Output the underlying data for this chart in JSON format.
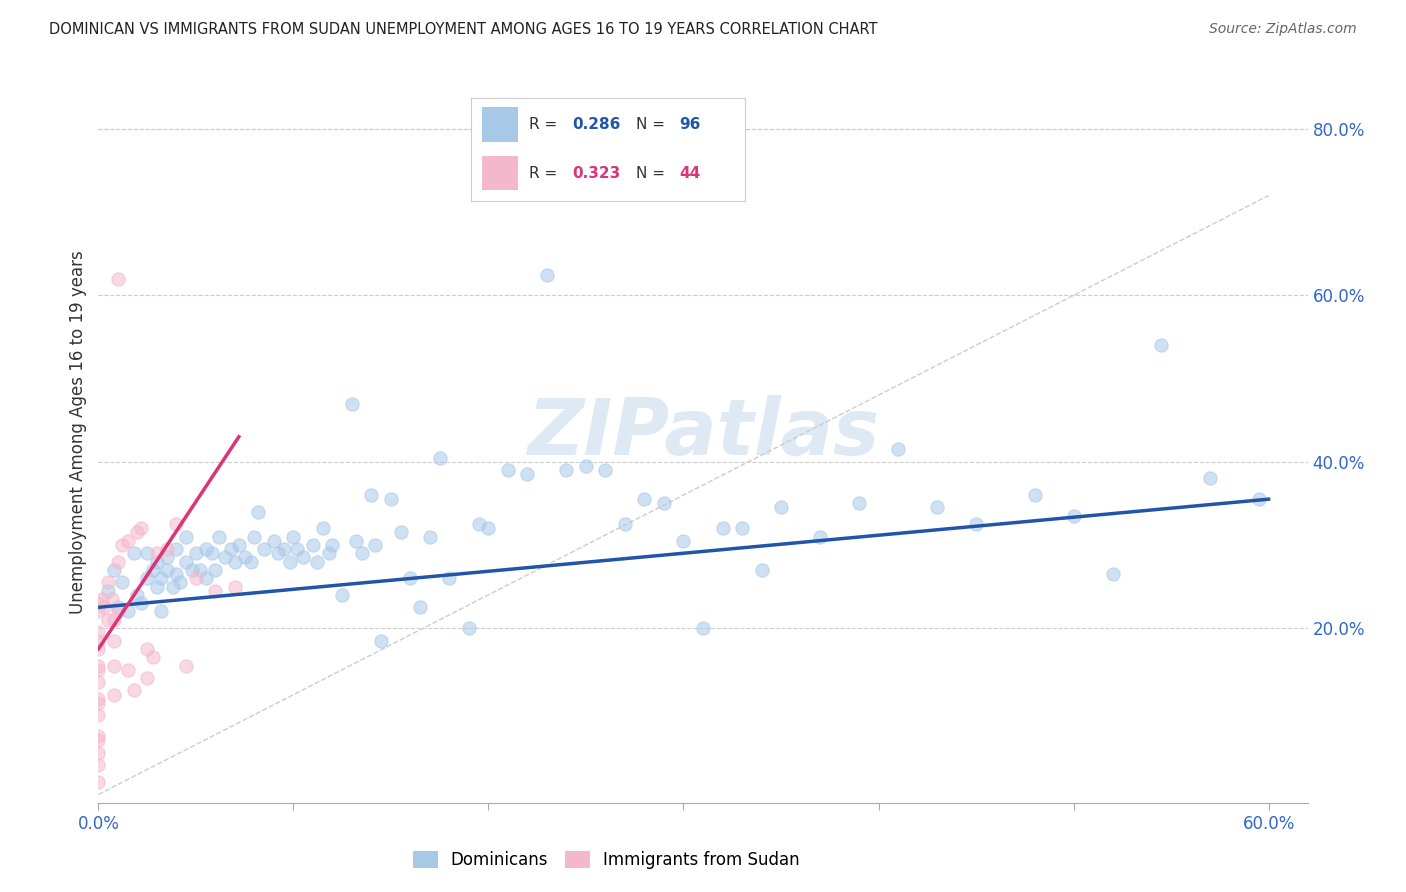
{
  "title": "DOMINICAN VS IMMIGRANTS FROM SUDAN UNEMPLOYMENT AMONG AGES 16 TO 19 YEARS CORRELATION CHART",
  "source": "Source: ZipAtlas.com",
  "ylabel": "Unemployment Among Ages 16 to 19 years",
  "xlim": [
    0.0,
    0.62
  ],
  "ylim": [
    -0.01,
    0.88
  ],
  "xticks": [
    0.0,
    0.1,
    0.2,
    0.3,
    0.4,
    0.5,
    0.6
  ],
  "xticklabels": [
    "0.0%",
    "",
    "",
    "",
    "",
    "",
    "60.0%"
  ],
  "yticks_right": [
    0.2,
    0.4,
    0.6,
    0.8
  ],
  "ytick_right_labels": [
    "20.0%",
    "40.0%",
    "60.0%",
    "80.0%"
  ],
  "blue_color": "#a8c8e8",
  "pink_color": "#f4b8cc",
  "blue_line_color": "#2255aa",
  "pink_line_color": "#dd3377",
  "watermark": "ZIPatlas",
  "blue_scatter_x": [
    0.005,
    0.008,
    0.01,
    0.012,
    0.015,
    0.018,
    0.02,
    0.022,
    0.025,
    0.025,
    0.028,
    0.03,
    0.03,
    0.032,
    0.032,
    0.035,
    0.035,
    0.038,
    0.04,
    0.04,
    0.042,
    0.045,
    0.045,
    0.048,
    0.05,
    0.052,
    0.055,
    0.055,
    0.058,
    0.06,
    0.062,
    0.065,
    0.068,
    0.07,
    0.072,
    0.075,
    0.078,
    0.08,
    0.082,
    0.085,
    0.09,
    0.092,
    0.095,
    0.098,
    0.1,
    0.102,
    0.105,
    0.11,
    0.112,
    0.115,
    0.118,
    0.12,
    0.125,
    0.13,
    0.132,
    0.135,
    0.14,
    0.142,
    0.145,
    0.15,
    0.155,
    0.16,
    0.165,
    0.17,
    0.175,
    0.18,
    0.19,
    0.195,
    0.2,
    0.21,
    0.22,
    0.23,
    0.24,
    0.25,
    0.26,
    0.27,
    0.28,
    0.29,
    0.3,
    0.31,
    0.32,
    0.33,
    0.34,
    0.35,
    0.37,
    0.39,
    0.41,
    0.43,
    0.45,
    0.48,
    0.5,
    0.52,
    0.545,
    0.57,
    0.595
  ],
  "blue_scatter_y": [
    0.245,
    0.27,
    0.225,
    0.255,
    0.22,
    0.29,
    0.24,
    0.23,
    0.26,
    0.29,
    0.27,
    0.28,
    0.25,
    0.26,
    0.22,
    0.285,
    0.27,
    0.25,
    0.295,
    0.265,
    0.255,
    0.28,
    0.31,
    0.27,
    0.29,
    0.27,
    0.295,
    0.26,
    0.29,
    0.27,
    0.31,
    0.285,
    0.295,
    0.28,
    0.3,
    0.285,
    0.28,
    0.31,
    0.34,
    0.295,
    0.305,
    0.29,
    0.295,
    0.28,
    0.31,
    0.295,
    0.285,
    0.3,
    0.28,
    0.32,
    0.29,
    0.3,
    0.24,
    0.47,
    0.305,
    0.29,
    0.36,
    0.3,
    0.185,
    0.355,
    0.315,
    0.26,
    0.225,
    0.31,
    0.405,
    0.26,
    0.2,
    0.325,
    0.32,
    0.39,
    0.385,
    0.625,
    0.39,
    0.395,
    0.39,
    0.325,
    0.355,
    0.35,
    0.305,
    0.2,
    0.32,
    0.32,
    0.27,
    0.345,
    0.31,
    0.35,
    0.415,
    0.345,
    0.325,
    0.36,
    0.335,
    0.265,
    0.54,
    0.38,
    0.355
  ],
  "pink_scatter_x": [
    0.0,
    0.0,
    0.0,
    0.0,
    0.0,
    0.0,
    0.0,
    0.0,
    0.0,
    0.0,
    0.0,
    0.0,
    0.0,
    0.0,
    0.0,
    0.0,
    0.002,
    0.003,
    0.005,
    0.005,
    0.007,
    0.008,
    0.008,
    0.008,
    0.008,
    0.01,
    0.01,
    0.01,
    0.012,
    0.015,
    0.015,
    0.018,
    0.02,
    0.022,
    0.025,
    0.025,
    0.028,
    0.03,
    0.035,
    0.04,
    0.045,
    0.05,
    0.06,
    0.07
  ],
  "pink_scatter_y": [
    0.23,
    0.195,
    0.175,
    0.155,
    0.135,
    0.115,
    0.095,
    0.07,
    0.05,
    0.035,
    0.015,
    0.22,
    0.185,
    0.15,
    0.11,
    0.065,
    0.235,
    0.225,
    0.255,
    0.21,
    0.235,
    0.21,
    0.185,
    0.155,
    0.12,
    0.28,
    0.62,
    0.22,
    0.3,
    0.305,
    0.15,
    0.125,
    0.315,
    0.32,
    0.175,
    0.14,
    0.165,
    0.29,
    0.295,
    0.325,
    0.155,
    0.26,
    0.245,
    0.25
  ],
  "blue_trend_x": [
    0.0,
    0.6
  ],
  "blue_trend_y": [
    0.225,
    0.355
  ],
  "pink_trend_x": [
    0.0,
    0.072
  ],
  "pink_trend_y": [
    0.175,
    0.43
  ],
  "diag_line_x": [
    0.0,
    0.6
  ],
  "diag_line_y": [
    0.0,
    0.72
  ]
}
